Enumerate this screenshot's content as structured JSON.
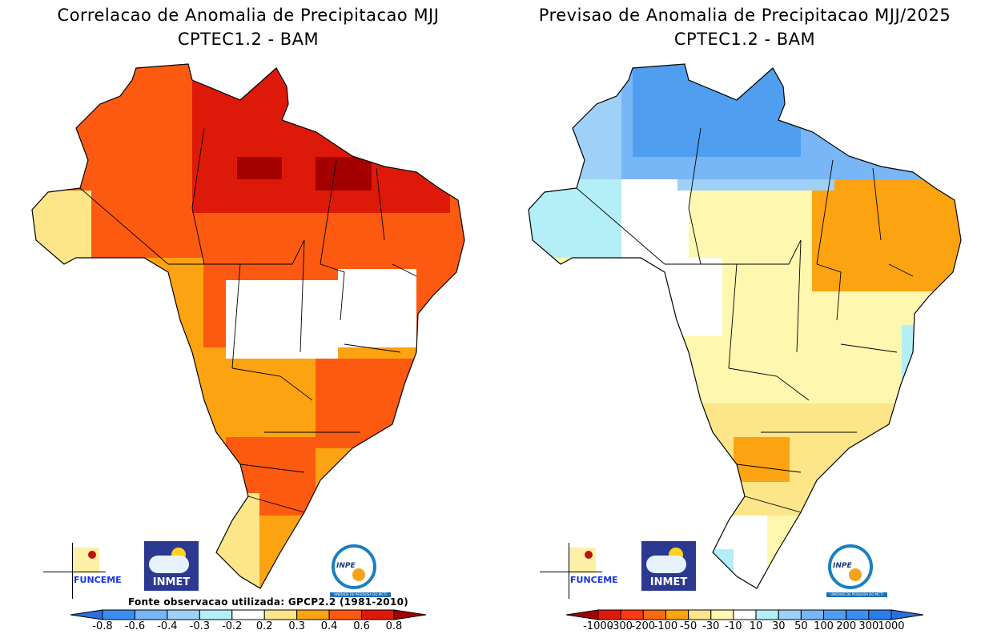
{
  "left_panel": {
    "title_line1": "Correlacao de Anomalia de Precipitacao MJJ",
    "title_line2": "CPTEC1.2 - BAM",
    "source_note": "Fonte observacao utilizada: GPCP2.2 (1981-2010)",
    "colorbar": {
      "ticks": [
        "-0.8",
        "-0.6",
        "-0.4",
        "-0.3",
        "-0.2",
        "0.2",
        "0.3",
        "0.4",
        "0.6",
        "0.8"
      ],
      "colors": [
        "#2b6fe0",
        "#3a8ef0",
        "#78b6f5",
        "#9fd0f7",
        "#b4eef7",
        "#ffffff",
        "#fde68a",
        "#fca312",
        "#fb5a10",
        "#dd1a0a",
        "#a50000"
      ]
    }
  },
  "right_panel": {
    "title_line1": "Previsao de Anomalia de Precipitacao MJJ/2025",
    "title_line2": "CPTEC1.2 - BAM",
    "colorbar": {
      "ticks": [
        "-1000",
        "-300",
        "-200",
        "-100",
        "-50",
        "-30",
        "-10",
        "10",
        "30",
        "50",
        "100",
        "200",
        "300",
        "1000"
      ],
      "colors": [
        "#a50000",
        "#dd1a0a",
        "#fb3a10",
        "#fb6a10",
        "#fca312",
        "#fde68a",
        "#fef7b0",
        "#ffffff",
        "#b4eef7",
        "#9fd0f7",
        "#78b6f5",
        "#4f9ef0",
        "#3a8ef0",
        "#2b7de8",
        "#2b6fe0"
      ]
    }
  },
  "logos": {
    "funceme": "FUNCEME",
    "inmet": "INMET",
    "inpe": "INPE",
    "inpe_sub": "UNIDADE DE PESQUISA DO MCTI"
  }
}
